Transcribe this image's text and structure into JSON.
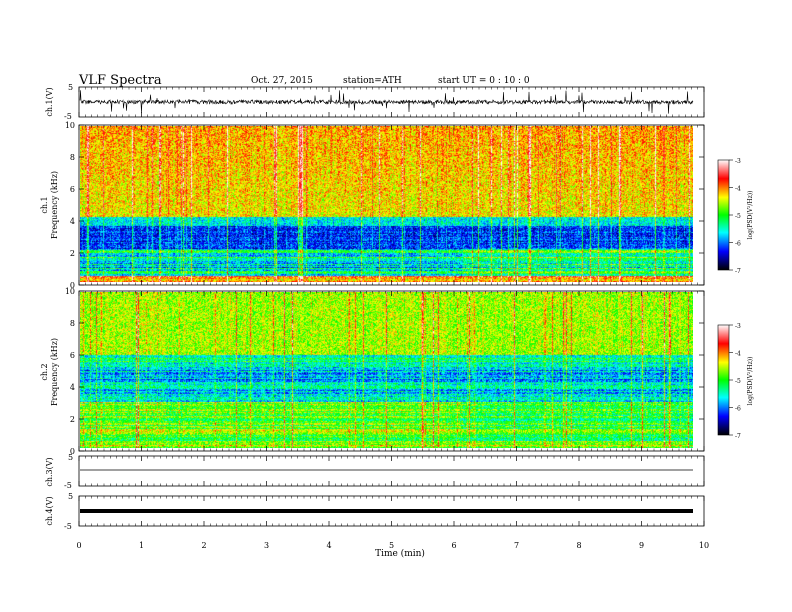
{
  "header": {
    "title": "VLF  Spectra",
    "date": "Oct. 27, 2015",
    "station": "station=ATH",
    "start": "start  UT =   0 : 10 : 0"
  },
  "colorbar": {
    "label": "log(PSD(V²/Hz))",
    "ticks": [
      "-3",
      "-4",
      "-5",
      "-6",
      "-7"
    ],
    "colors": [
      "#ffffff",
      "#ff0000",
      "#ffff00",
      "#00ff00",
      "#00ffff",
      "#0000ff",
      "#000000"
    ]
  },
  "chart_data": [
    {
      "type": "line",
      "panel": "ch1",
      "ylabel": "ch.1(V)",
      "yticks": [
        "5",
        "-5"
      ],
      "ylim": [
        -5,
        5
      ],
      "xlim": [
        0,
        10
      ],
      "series": [
        {
          "values": "dense noise-like waveform near 0 V with frequent spikes of about ±1.5 V"
        }
      ]
    },
    {
      "type": "heatmap",
      "panel": "ch1-spectrogram",
      "ylabel": "ch.1\nFrequency  (kHz)",
      "yticks": [
        "0",
        "2",
        "4",
        "6",
        "8",
        "10"
      ],
      "ylim": [
        0,
        10
      ],
      "xlim": [
        0,
        9.8
      ],
      "description": "Intense broadband sferics (green-yellow-red) above about 3.8 kHz, quiet dark-blue band between about 2.2 and 3.8 kHz, banded power-line harmonics below 2 kHz; lower band structure changes at about 6.1 min"
    },
    {
      "type": "heatmap",
      "panel": "ch2-spectrogram",
      "ylabel": "ch.2\nFrequency  (kHz)",
      "yticks": [
        "0",
        "2",
        "4",
        "6",
        "8",
        "10"
      ],
      "ylim": [
        0,
        10
      ],
      "xlim": [
        0,
        9.8
      ],
      "description": "Green-yellow sferics above about 6 kHz, blue bands between about 3 and 5.5 kHz, green banded structure below 3 kHz changing at about 6.1 min"
    },
    {
      "type": "line",
      "panel": "ch3",
      "ylabel": "ch.3(V)",
      "yticks": [
        "5",
        "-5"
      ],
      "ylim": [
        -5,
        5
      ],
      "series": [
        {
          "values": "flat trace at about 0 V"
        }
      ]
    },
    {
      "type": "line",
      "panel": "ch4",
      "ylabel": "ch.4(V)",
      "yticks": [
        "5",
        "-5"
      ],
      "ylim": [
        -5,
        5
      ],
      "series": [
        {
          "values": "thick flat trace at about 0 V"
        }
      ]
    }
  ],
  "xaxis": {
    "label": "Time  (min)",
    "ticks": [
      "0",
      "1",
      "2",
      "3",
      "4",
      "5",
      "6",
      "7",
      "8",
      "9",
      "10"
    ],
    "range": [
      0,
      10
    ]
  }
}
